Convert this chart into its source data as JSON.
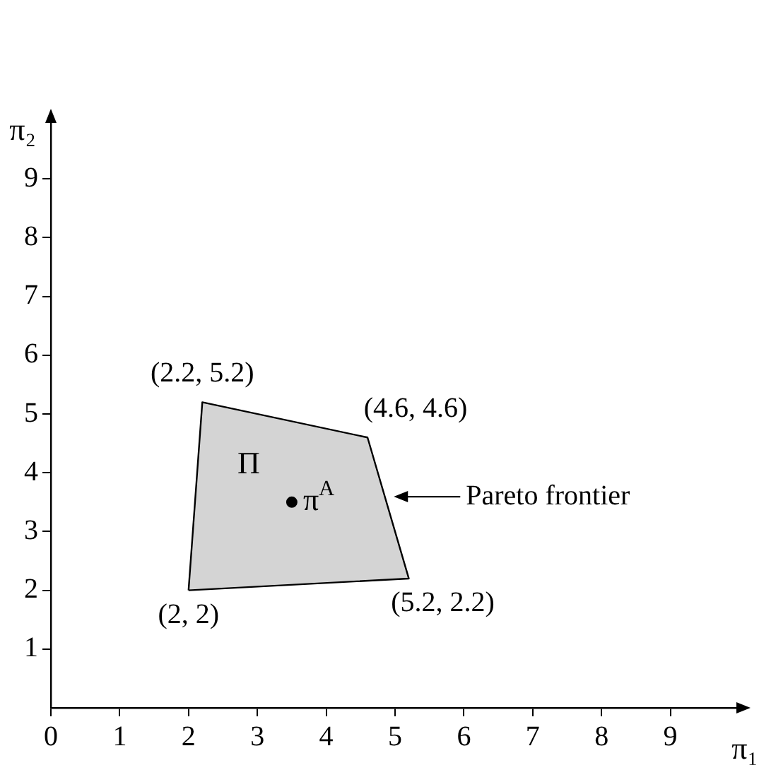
{
  "chart_data": {
    "type": "line",
    "xlabel": "π₁",
    "ylabel": "π₂",
    "xlim": [
      0,
      10
    ],
    "ylim": [
      0,
      10
    ],
    "xticks": [
      0,
      1,
      2,
      3,
      4,
      5,
      6,
      7,
      8,
      9
    ],
    "yticks": [
      1,
      2,
      3,
      4,
      5,
      6,
      7,
      8,
      9
    ],
    "grid": false,
    "series": [
      {
        "type": "area",
        "x": [
          2,
          2.2,
          4.6,
          5.2,
          2
        ],
        "values": [
          2,
          5.2,
          4.6,
          2.2,
          2
        ],
        "color": "#d4d4d4"
      },
      {
        "type": "scatter",
        "name": "π$^{A}$",
        "x": [
          3.5
        ],
        "values": [
          3.5
        ],
        "color": "#000000",
        "marker": "circle"
      }
    ],
    "annotations": [
      {
        "text": "(2, 2)",
        "x": 2,
        "y": 2
      },
      {
        "text": "(2.2, 5.2)",
        "x": 2.2,
        "y": 5.2
      },
      {
        "text": "(4.6, 4.6)",
        "x": 4.6,
        "y": 4.6
      },
      {
        "text": "(5.2, 2.2)",
        "x": 5.2,
        "y": 2.2
      },
      "Π",
      "Pareto frontier"
    ]
  }
}
